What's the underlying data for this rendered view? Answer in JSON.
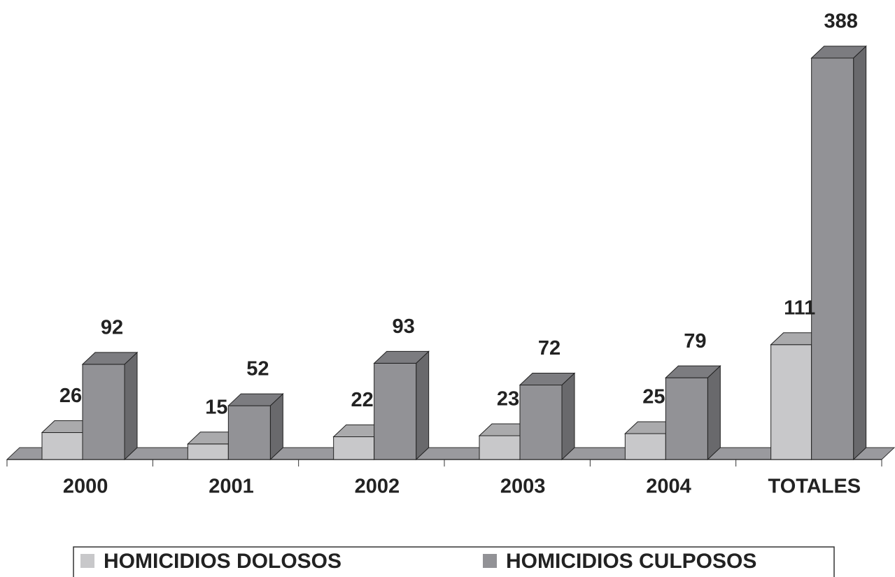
{
  "chart_data": {
    "type": "bar3d",
    "categories": [
      "2000",
      "2001",
      "2002",
      "2003",
      "2004",
      "TOTALES"
    ],
    "series": [
      {
        "name": "HOMICIDIOS DOLOSOS",
        "color": "#c8c8ca",
        "values": [
          26,
          15,
          22,
          23,
          25,
          111
        ]
      },
      {
        "name": "HOMICIDIOS CULPOSOS",
        "color": "#929296",
        "values": [
          92,
          52,
          93,
          72,
          79,
          388
        ]
      }
    ],
    "legend": "bottom"
  }
}
